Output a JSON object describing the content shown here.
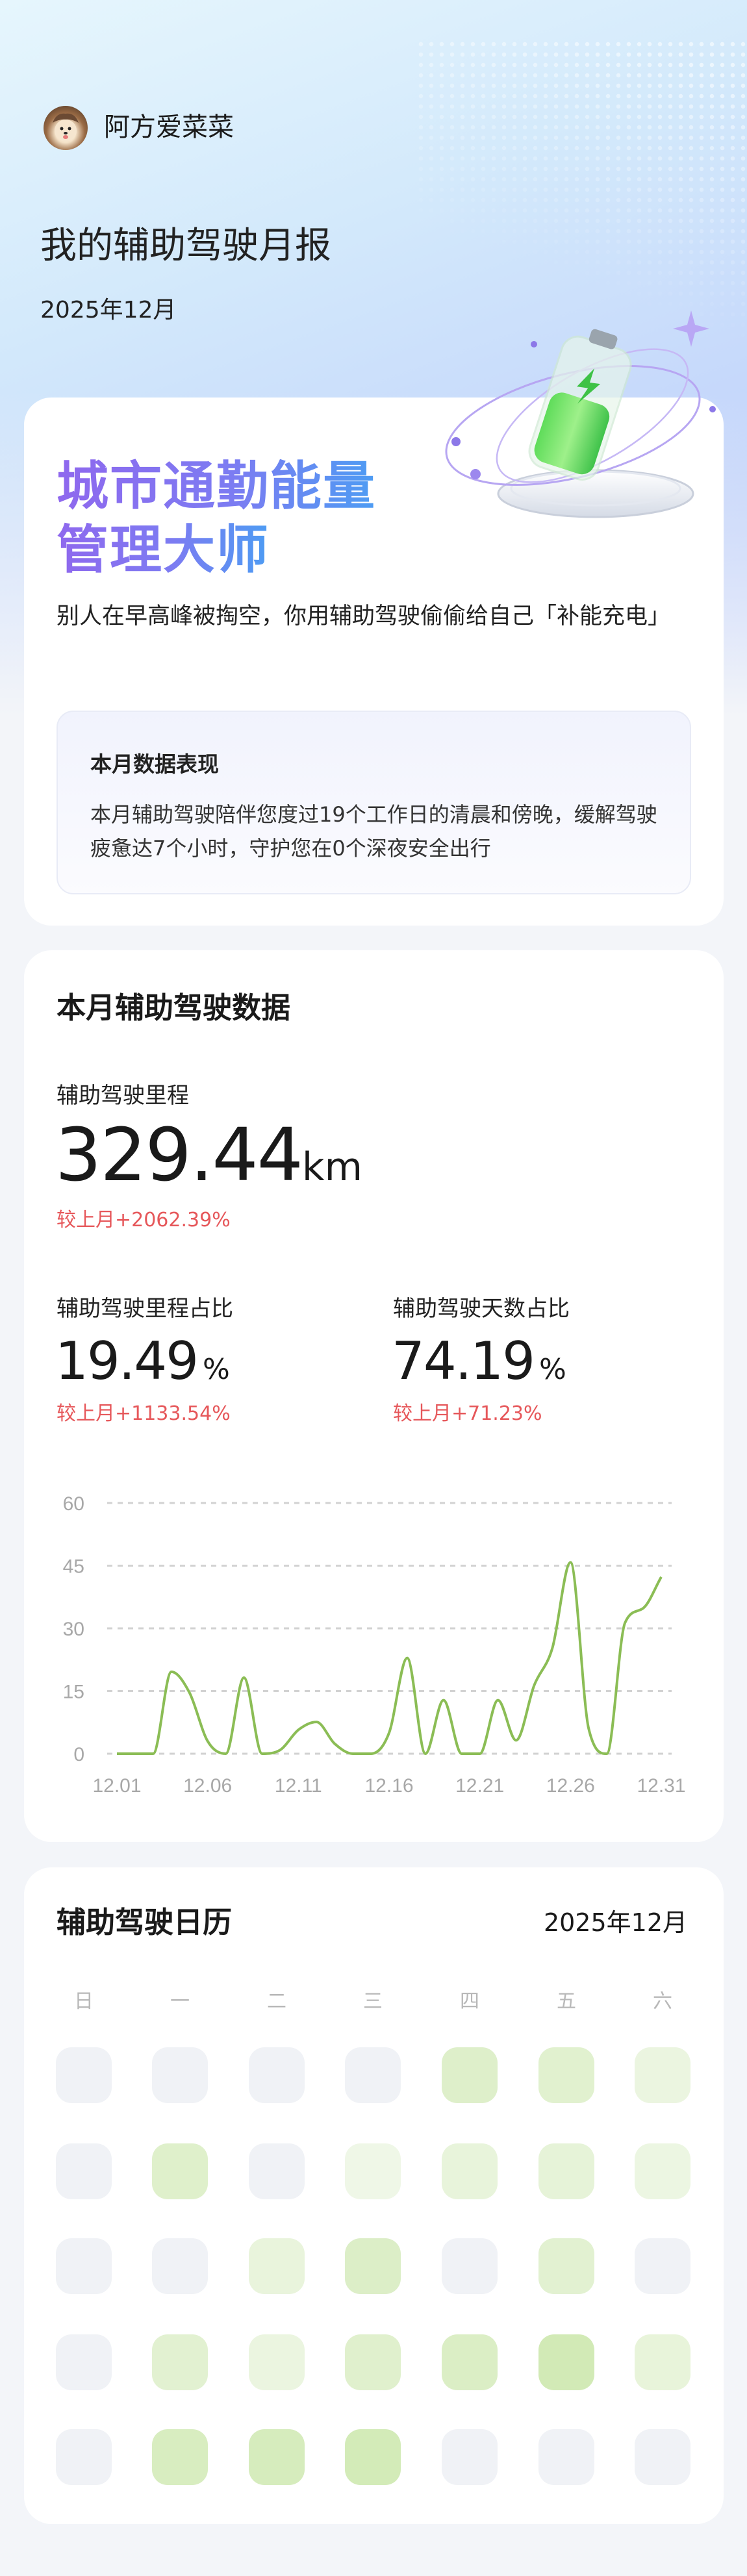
{
  "header": {
    "username": "阿方爱菜菜",
    "title": "我的辅助驾驶月报",
    "date": "2025年12月"
  },
  "summary_card": {
    "title_line1": "城市通勤能量",
    "title_line2": "管理大师",
    "subtitle": "别人在早高峰被掏空，你用辅助驾驶偷偷给自己「补能充电」",
    "performance": {
      "heading": "本月数据表现",
      "body": "本月辅助驾驶陪伴您度过19个工作日的清晨和傍晚，缓解驾驶疲惫达7个小时，守护您在0个深夜安全出行"
    }
  },
  "stats_card": {
    "title": "本月辅助驾驶数据",
    "distance": {
      "label": "辅助驾驶里程",
      "value": "329.44",
      "unit": "km",
      "change": "较上月+2062.39%"
    },
    "distance_ratio": {
      "label": "辅助驾驶里程占比",
      "value": "19.49",
      "unit": "%",
      "change": "较上月+1133.54%"
    },
    "days_ratio": {
      "label": "辅助驾驶天数占比",
      "value": "74.19",
      "unit": "%",
      "change": "较上月+71.23%"
    },
    "colors": {
      "increase": "#e6575a",
      "line": "#8bbd55"
    }
  },
  "chart_data": {
    "type": "line",
    "title": "",
    "xlabel": "",
    "ylabel": "",
    "ylim": [
      0,
      60
    ],
    "yticks": [
      "0",
      "15",
      "30",
      "45",
      "60"
    ],
    "xticks": [
      "12.01",
      "12.06",
      "12.11",
      "12.16",
      "12.21",
      "12.26",
      "12.31"
    ],
    "grid": "horizontal-dashed",
    "x": [
      "12.01",
      "12.02",
      "12.03",
      "12.04",
      "12.05",
      "12.06",
      "12.07",
      "12.08",
      "12.09",
      "12.10",
      "12.11",
      "12.12",
      "12.13",
      "12.14",
      "12.15",
      "12.16",
      "12.17",
      "12.18",
      "12.19",
      "12.20",
      "12.21",
      "12.22",
      "12.23",
      "12.24",
      "12.25",
      "12.26",
      "12.27",
      "12.28",
      "12.29",
      "12.30",
      "12.31"
    ],
    "values": [
      0,
      0,
      0,
      19.6,
      14.6,
      3,
      0,
      18.2,
      0,
      0.9,
      5.7,
      7.6,
      2.4,
      0,
      0,
      5,
      22.9,
      0,
      12.8,
      0,
      0,
      12.8,
      3.2,
      16.4,
      25.3,
      45.8,
      6,
      0,
      31.3,
      34.8,
      42.3
    ]
  },
  "calendar": {
    "title": "辅助驾驶日历",
    "month": "2025年12月",
    "weekdays": [
      "日",
      "一",
      "二",
      "三",
      "四",
      "五",
      "六"
    ],
    "leading_empty_days": 1,
    "colors": {
      "empty": "#f0f2f6",
      "low": "#f4f9ef",
      "high": "#d2eab6"
    }
  }
}
